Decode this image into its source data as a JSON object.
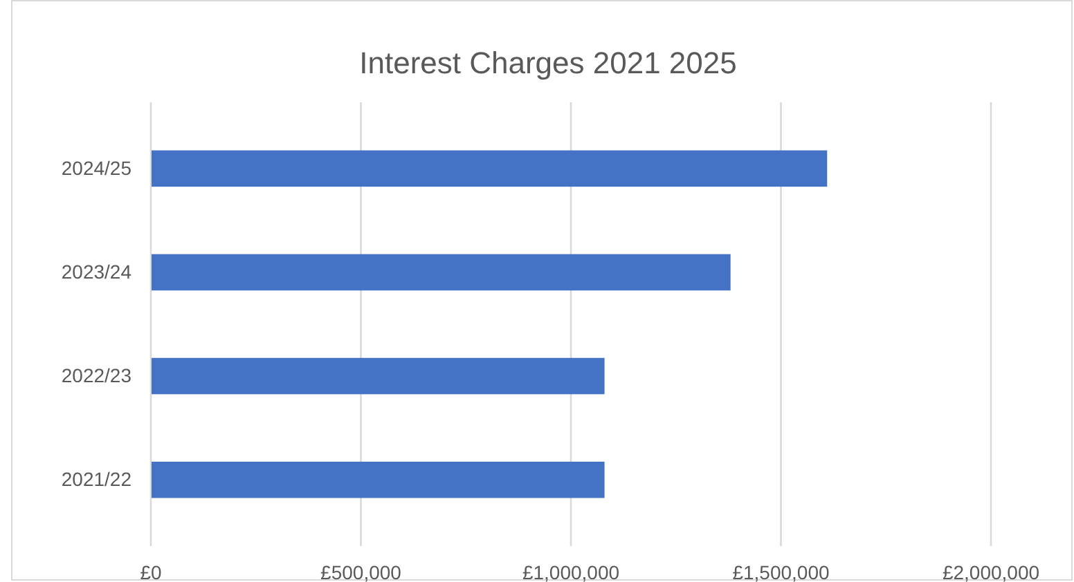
{
  "chart_data": {
    "type": "bar",
    "orientation": "horizontal",
    "title": "Interest Charges 2021 2025",
    "categories": [
      "2024/25",
      "2023/24",
      "2022/23",
      "2021/22"
    ],
    "values": [
      1610000,
      1380000,
      1080000,
      1080000
    ],
    "color": "#4472c4",
    "xlim": [
      0,
      2000000
    ],
    "xticks": [
      {
        "value": 0,
        "label": "£0"
      },
      {
        "value": 500000,
        "label": "£500,000"
      },
      {
        "value": 1000000,
        "label": "£1,000,000"
      },
      {
        "value": 1500000,
        "label": "£1,500,000"
      },
      {
        "value": 2000000,
        "label": "£2,000,000"
      }
    ],
    "grid": "x"
  }
}
